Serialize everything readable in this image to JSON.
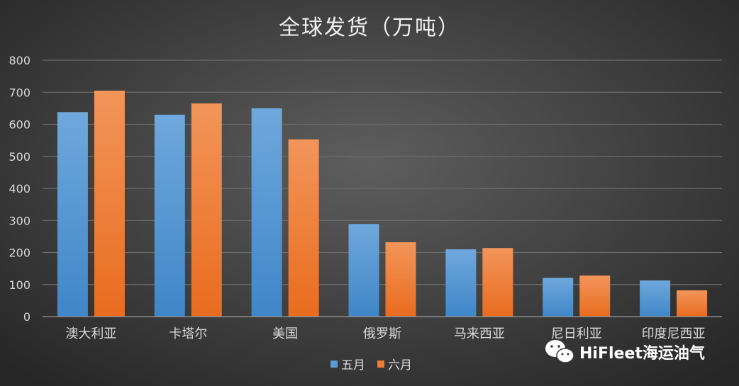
{
  "chart_data": {
    "type": "bar",
    "title": "全球发货（万吨）",
    "categories": [
      "澳大利亚",
      "卡塔尔",
      "美国",
      "俄罗斯",
      "马来西亚",
      "尼日利亚",
      "印度尼西亚"
    ],
    "series": [
      {
        "name": "五月",
        "color": "#5b9bd5",
        "values": [
          638,
          630,
          650,
          289,
          210,
          121,
          113
        ]
      },
      {
        "name": "六月",
        "color": "#ed7d31",
        "values": [
          705,
          665,
          553,
          232,
          214,
          128,
          82
        ]
      }
    ],
    "yticks": [
      "0",
      "100",
      "200",
      "300",
      "400",
      "500",
      "600",
      "700",
      "800"
    ],
    "ylim": [
      0,
      800
    ],
    "grid": true,
    "legend_position": "bottom"
  },
  "watermark": {
    "text": "HiFleet海运油气",
    "icon": "wechat-icon"
  }
}
